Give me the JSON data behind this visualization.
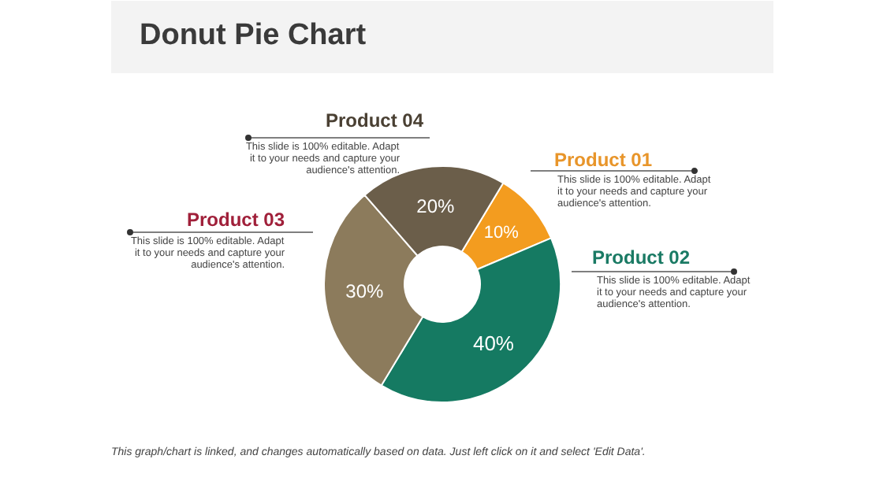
{
  "chart_data": {
    "type": "donut",
    "title": "Donut Pie Chart",
    "categories": [
      "Product 01",
      "Product 02",
      "Product 03",
      "Product 04"
    ],
    "values": [
      10,
      40,
      30,
      20
    ],
    "colors": [
      "#f39c1f",
      "#157a62",
      "#8c7b5c",
      "#6b5e4a"
    ],
    "value_labels": [
      "10%",
      "40%",
      "30%",
      "20%"
    ],
    "annotations": [
      "This slide is 100% editable. Adapt it to your needs and capture your audience's attention.",
      "This slide is 100% editable. Adapt it to your needs and capture your audience's attention.",
      "This slide is 100% editable. Adapt it to your needs and capture your audience's attention.",
      "This slide is 100% editable. Adapt it to your needs and capture your audience's attention.",
      "This graph/chart is linked, and changes automatically based on data. Just left click on it and select 'Edit Data'."
    ]
  }
}
